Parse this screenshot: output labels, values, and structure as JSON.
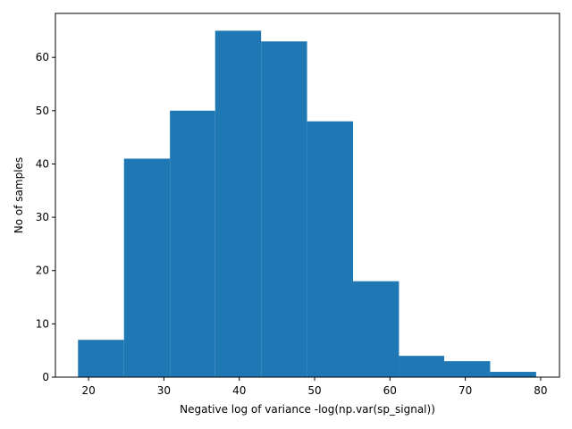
{
  "chart_data": {
    "type": "histogram",
    "title": "",
    "xlabel": "Negative log of variance -log(np.var(sp_signal))",
    "ylabel": "No of samples",
    "bins": [
      {
        "x0": 18.6,
        "x1": 24.7,
        "count": 7
      },
      {
        "x0": 24.7,
        "x1": 30.8,
        "count": 41
      },
      {
        "x0": 30.8,
        "x1": 36.8,
        "count": 50
      },
      {
        "x0": 36.8,
        "x1": 42.9,
        "count": 65
      },
      {
        "x0": 42.9,
        "x1": 49.0,
        "count": 63
      },
      {
        "x0": 49.0,
        "x1": 55.1,
        "count": 48
      },
      {
        "x0": 55.1,
        "x1": 61.2,
        "count": 18
      },
      {
        "x0": 61.2,
        "x1": 67.2,
        "count": 4
      },
      {
        "x0": 67.2,
        "x1": 73.3,
        "count": 3
      },
      {
        "x0": 73.3,
        "x1": 79.4,
        "count": 1
      }
    ],
    "xlim": [
      15.6,
      82.5
    ],
    "ylim": [
      0,
      68.25
    ],
    "xticks": [
      20,
      30,
      40,
      50,
      60,
      70,
      80
    ],
    "yticks": [
      0,
      10,
      20,
      30,
      40,
      50,
      60
    ],
    "bar_color": "#1f77b4",
    "grid": false,
    "legend": "none"
  }
}
